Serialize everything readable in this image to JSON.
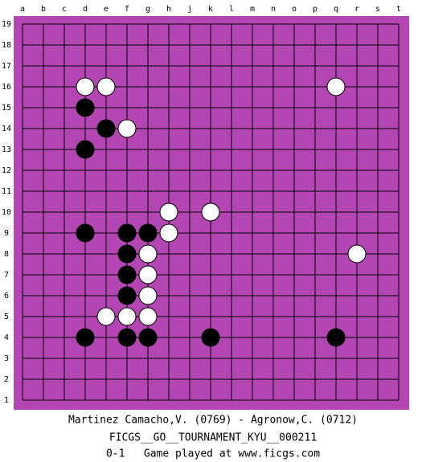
{
  "board": {
    "columns": [
      "a",
      "b",
      "c",
      "d",
      "e",
      "f",
      "g",
      "h",
      "j",
      "k",
      "l",
      "m",
      "n",
      "o",
      "p",
      "q",
      "r",
      "s",
      "t"
    ],
    "rows": [
      19,
      18,
      17,
      16,
      15,
      14,
      13,
      12,
      11,
      10,
      9,
      8,
      7,
      6,
      5,
      4,
      3,
      2,
      1
    ],
    "stones": [
      {
        "color": "white",
        "col": "d",
        "row": 16
      },
      {
        "color": "white",
        "col": "e",
        "row": 16
      },
      {
        "color": "white",
        "col": "q",
        "row": 16
      },
      {
        "color": "black",
        "col": "d",
        "row": 15
      },
      {
        "color": "black",
        "col": "e",
        "row": 14
      },
      {
        "color": "white",
        "col": "f",
        "row": 14
      },
      {
        "color": "black",
        "col": "d",
        "row": 13
      },
      {
        "color": "white",
        "col": "h",
        "row": 10
      },
      {
        "color": "white",
        "col": "k",
        "row": 10
      },
      {
        "color": "black",
        "col": "d",
        "row": 9
      },
      {
        "color": "black",
        "col": "f",
        "row": 9
      },
      {
        "color": "black",
        "col": "g",
        "row": 9
      },
      {
        "color": "white",
        "col": "h",
        "row": 9
      },
      {
        "color": "black",
        "col": "f",
        "row": 8
      },
      {
        "color": "white",
        "col": "g",
        "row": 8
      },
      {
        "color": "white",
        "col": "r",
        "row": 8
      },
      {
        "color": "black",
        "col": "f",
        "row": 7
      },
      {
        "color": "white",
        "col": "g",
        "row": 7
      },
      {
        "color": "black",
        "col": "f",
        "row": 6
      },
      {
        "color": "white",
        "col": "g",
        "row": 6
      },
      {
        "color": "white",
        "col": "e",
        "row": 5
      },
      {
        "color": "white",
        "col": "f",
        "row": 5
      },
      {
        "color": "white",
        "col": "g",
        "row": 5
      },
      {
        "color": "black",
        "col": "d",
        "row": 4
      },
      {
        "color": "black",
        "col": "f",
        "row": 4
      },
      {
        "color": "black",
        "col": "g",
        "row": 4
      },
      {
        "color": "black",
        "col": "k",
        "row": 4
      },
      {
        "color": "black",
        "col": "q",
        "row": 4
      }
    ]
  },
  "footer": {
    "players": "Martinez Camacho,V. (0769) - Agronow,C. (0712)",
    "event": "FICGS__GO__TOURNAMENT_KYU__000211",
    "result": "0-1   Game played at www.ficgs.com"
  }
}
